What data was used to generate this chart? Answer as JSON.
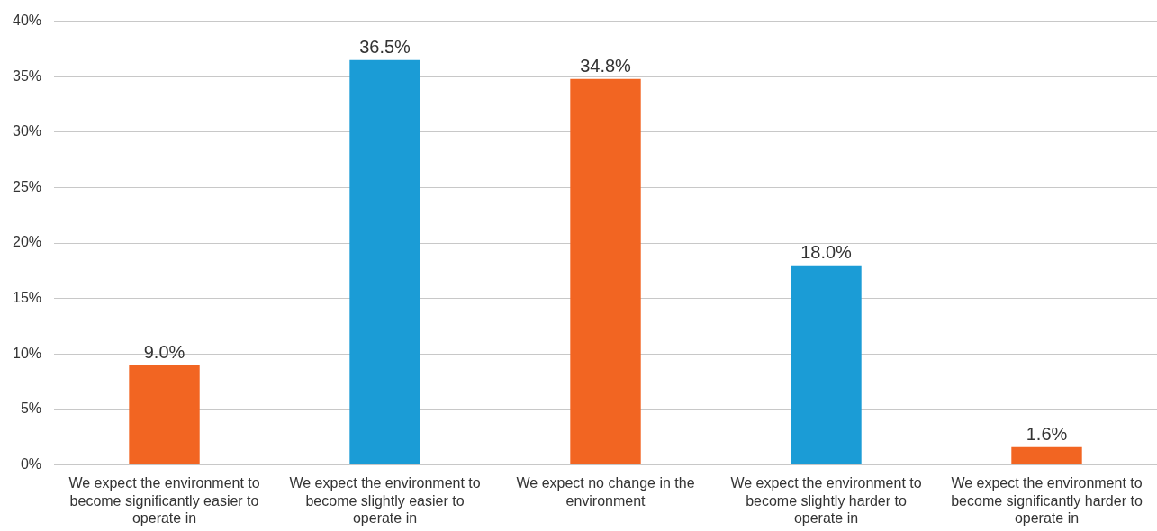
{
  "chart_data": {
    "type": "bar",
    "categories": [
      "We expect the environment to become significantly easier to operate in",
      "We expect the environment to become slightly easier to operate in",
      "We expect no change in the environment",
      "We expect the environment to become slightly harder to operate in",
      "We expect the environment to become significantly harder to operate in"
    ],
    "values": [
      9.0,
      36.5,
      34.8,
      18.0,
      1.6
    ],
    "colors": [
      "#f26522",
      "#1b9cd6",
      "#f26522",
      "#1b9cd6",
      "#f26522"
    ],
    "value_labels": [
      "9.0%",
      "36.5%",
      "34.8%",
      "18.0%",
      "1.6%"
    ],
    "ylim": [
      0,
      40
    ],
    "yticks": [
      {
        "value": 0,
        "label": "0%"
      },
      {
        "value": 5,
        "label": "5%"
      },
      {
        "value": 10,
        "label": "10%"
      },
      {
        "value": 15,
        "label": "15%"
      },
      {
        "value": 20,
        "label": "20%"
      },
      {
        "value": 25,
        "label": "25%"
      },
      {
        "value": 30,
        "label": "30%"
      },
      {
        "value": 35,
        "label": "35%"
      },
      {
        "value": 40,
        "label": "40%"
      }
    ],
    "grid": "y",
    "legend": false
  }
}
